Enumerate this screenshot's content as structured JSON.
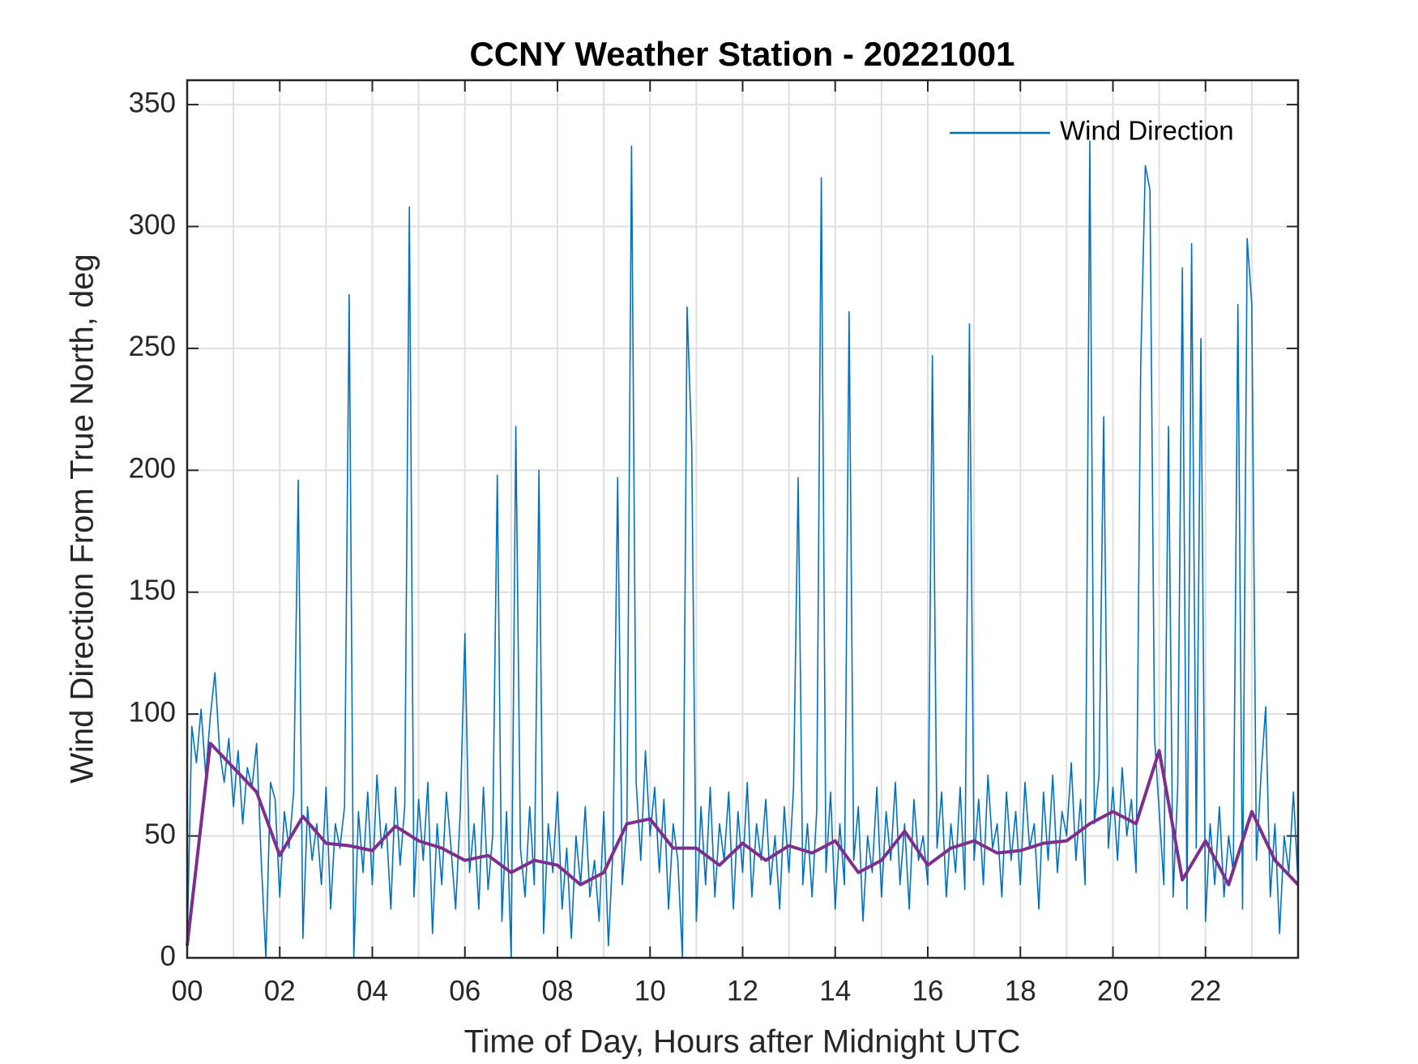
{
  "chart_data": {
    "type": "line",
    "title": "CCNY Weather Station - 20221001",
    "x_label": "Time of Day, Hours after Midnight UTC",
    "y_label": "Wind Direction From True North, deg",
    "xlim": [
      0,
      24
    ],
    "ylim": [
      0,
      360
    ],
    "xticks": [
      {
        "value": 0,
        "label": "00"
      },
      {
        "value": 2,
        "label": "02"
      },
      {
        "value": 4,
        "label": "04"
      },
      {
        "value": 6,
        "label": "06"
      },
      {
        "value": 8,
        "label": "08"
      },
      10,
      12,
      14,
      16,
      18,
      20,
      22
    ],
    "xminorticks": [
      1,
      3,
      5,
      7,
      9,
      11,
      13,
      15,
      17,
      19,
      21,
      23
    ],
    "yticks": [
      0,
      50,
      100,
      150,
      200,
      250,
      300,
      350
    ],
    "grid": true,
    "legend": "northeast",
    "series": [
      {
        "name": "Wind Direction",
        "color": "#0072BD",
        "x": [
          0,
          0.1,
          0.2,
          0.3,
          0.4,
          0.5,
          0.6,
          0.7,
          0.8,
          0.9,
          1,
          1.1,
          1.2,
          1.3,
          1.4,
          1.5,
          1.6,
          1.7,
          1.8,
          1.9,
          2,
          2.1,
          2.2,
          2.3,
          2.4,
          2.5,
          2.6,
          2.7,
          2.8,
          2.9,
          3,
          3.1,
          3.2,
          3.3,
          3.4,
          3.5,
          3.6,
          3.7,
          3.8,
          3.9,
          4,
          4.1,
          4.2,
          4.3,
          4.4,
          4.5,
          4.6,
          4.7,
          4.8,
          4.9,
          5,
          5.1,
          5.2,
          5.3,
          5.4,
          5.5,
          5.6,
          5.7,
          5.8,
          5.9,
          6,
          6.1,
          6.2,
          6.3,
          6.4,
          6.5,
          6.6,
          6.7,
          6.8,
          6.9,
          7,
          7.1,
          7.2,
          7.3,
          7.4,
          7.5,
          7.6,
          7.7,
          7.8,
          7.9,
          8,
          8.1,
          8.2,
          8.3,
          8.4,
          8.5,
          8.6,
          8.7,
          8.8,
          8.9,
          9,
          9.1,
          9.2,
          9.3,
          9.4,
          9.5,
          9.6,
          9.7,
          9.8,
          9.9,
          10,
          10.1,
          10.2,
          10.3,
          10.4,
          10.5,
          10.6,
          10.7,
          10.8,
          10.9,
          11,
          11.1,
          11.2,
          11.3,
          11.4,
          11.5,
          11.6,
          11.7,
          11.8,
          11.9,
          12,
          12.1,
          12.2,
          12.3,
          12.4,
          12.5,
          12.6,
          12.7,
          12.8,
          12.9,
          13,
          13.1,
          13.2,
          13.3,
          13.4,
          13.5,
          13.6,
          13.7,
          13.8,
          13.9,
          14,
          14.1,
          14.2,
          14.3,
          14.4,
          14.5,
          14.6,
          14.7,
          14.8,
          14.9,
          15,
          15.1,
          15.2,
          15.3,
          15.4,
          15.5,
          15.6,
          15.7,
          15.8,
          15.9,
          16,
          16.1,
          16.2,
          16.3,
          16.4,
          16.5,
          16.6,
          16.7,
          16.8,
          16.9,
          17,
          17.1,
          17.2,
          17.3,
          17.4,
          17.5,
          17.6,
          17.7,
          17.8,
          17.9,
          18,
          18.1,
          18.2,
          18.3,
          18.4,
          18.5,
          18.6,
          18.7,
          18.8,
          18.9,
          19,
          19.1,
          19.2,
          19.3,
          19.4,
          19.5,
          19.6,
          19.7,
          19.8,
          19.9,
          20,
          20.1,
          20.2,
          20.3,
          20.4,
          20.5,
          20.6,
          20.7,
          20.8,
          20.9,
          21,
          21.1,
          21.2,
          21.3,
          21.4,
          21.5,
          21.6,
          21.7,
          21.8,
          21.9,
          22,
          22.1,
          22.2,
          22.3,
          22.4,
          22.5,
          22.6,
          22.7,
          22.8,
          22.9,
          23,
          23.1,
          23.2,
          23.3,
          23.4,
          23.5,
          23.6,
          23.7,
          23.8,
          23.9,
          24
        ],
        "values": [
          5,
          95,
          80,
          102,
          75,
          99,
          117,
          85,
          72,
          90,
          62,
          85,
          55,
          78,
          70,
          88,
          40,
          0,
          72,
          65,
          25,
          60,
          45,
          68,
          196,
          8,
          62,
          40,
          55,
          30,
          70,
          20,
          55,
          45,
          62,
          272,
          0,
          60,
          35,
          68,
          30,
          75,
          45,
          55,
          20,
          70,
          38,
          62,
          308,
          25,
          65,
          40,
          72,
          10,
          55,
          30,
          68,
          45,
          20,
          60,
          133,
          35,
          55,
          20,
          70,
          28,
          50,
          198,
          15,
          60,
          0,
          218,
          45,
          25,
          62,
          30,
          200,
          10,
          55,
          35,
          68,
          20,
          45,
          8,
          50,
          30,
          62,
          25,
          40,
          15,
          60,
          5,
          45,
          197,
          30,
          55,
          333,
          72,
          40,
          85,
          50,
          70,
          35,
          65,
          20,
          55,
          40,
          0,
          267,
          210,
          15,
          62,
          30,
          70,
          25,
          55,
          40,
          68,
          20,
          60,
          35,
          72,
          25,
          55,
          40,
          65,
          30,
          50,
          20,
          62,
          35,
          70,
          197,
          30,
          55,
          25,
          60,
          320,
          35,
          68,
          20,
          55,
          30,
          265,
          40,
          62,
          15,
          50,
          35,
          70,
          25,
          60,
          40,
          72,
          30,
          55,
          20,
          65,
          40,
          50,
          30,
          247,
          45,
          68,
          25,
          55,
          35,
          70,
          28,
          260,
          40,
          65,
          30,
          75,
          45,
          55,
          25,
          68,
          40,
          60,
          30,
          72,
          45,
          55,
          20,
          68,
          40,
          75,
          35,
          60,
          50,
          80,
          40,
          65,
          30,
          335,
          55,
          75,
          222,
          45,
          70,
          40,
          78,
          50,
          65,
          35,
          243,
          325,
          315,
          90,
          60,
          30,
          218,
          25,
          70,
          283,
          20,
          293,
          45,
          254,
          15,
          55,
          30,
          62,
          25,
          50,
          35,
          268,
          20,
          295,
          268,
          40,
          75,
          103,
          25,
          55,
          10,
          50,
          35,
          68,
          30
        ]
      },
      {
        "color": "#7E2F8E",
        "x": [
          0,
          0.5,
          1,
          1.5,
          2,
          2.5,
          3,
          3.5,
          4,
          4.5,
          5,
          5.5,
          6,
          6.5,
          7,
          7.5,
          8,
          8.5,
          9,
          9.5,
          10,
          10.5,
          11,
          11.5,
          12,
          12.5,
          13,
          13.5,
          14,
          14.5,
          15,
          15.5,
          16,
          16.5,
          17,
          17.5,
          18,
          18.5,
          19,
          19.5,
          20,
          20.5,
          21,
          21.5,
          22,
          22.5,
          23,
          23.5,
          24
        ],
        "values": [
          5,
          88,
          78,
          68,
          42,
          58,
          47,
          46,
          44,
          54,
          48,
          45,
          40,
          42,
          35,
          40,
          38,
          30,
          35,
          55,
          57,
          45,
          45,
          38,
          47,
          40,
          46,
          43,
          48,
          35,
          40,
          52,
          38,
          45,
          48,
          43,
          44,
          47,
          48,
          55,
          60,
          55,
          85,
          32,
          48,
          30,
          60,
          40,
          30
        ]
      }
    ]
  }
}
